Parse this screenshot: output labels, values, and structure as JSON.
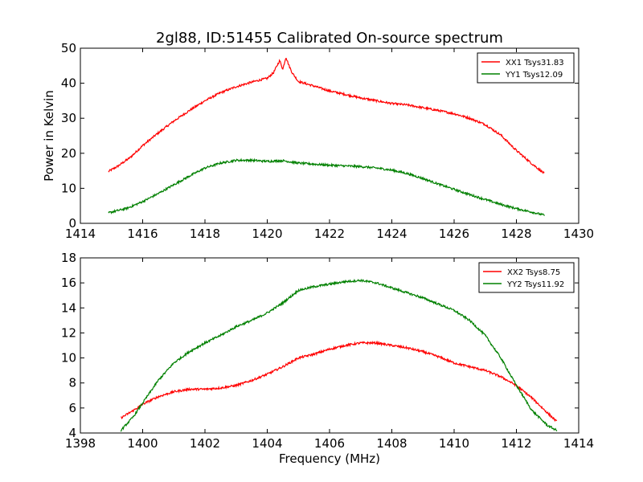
{
  "figure": {
    "title": "2gl88, ID:51455 Calibrated On-source spectrum"
  },
  "chart_data": [
    {
      "type": "line",
      "title": "2gl88, ID:51455 Calibrated On-source spectrum",
      "xlabel": "",
      "ylabel": "Power in Kelvin",
      "xlim": [
        1414,
        1430
      ],
      "ylim": [
        0,
        50
      ],
      "xticks": [
        1414,
        1416,
        1418,
        1420,
        1422,
        1424,
        1426,
        1428,
        1430
      ],
      "yticks": [
        0,
        10,
        20,
        30,
        40,
        50
      ],
      "legend_position": "top-right",
      "series": [
        {
          "name": "XX1 Tsys31.83",
          "color": "#ff0000",
          "x": [
            1414.9,
            1415.2,
            1415.6,
            1416.0,
            1416.5,
            1417.0,
            1417.5,
            1418.0,
            1418.5,
            1419.0,
            1419.5,
            1419.8,
            1420.0,
            1420.2,
            1420.4,
            1420.5,
            1420.6,
            1420.7,
            1420.8,
            1421.0,
            1421.5,
            1422.0,
            1422.5,
            1423.0,
            1423.5,
            1424.0,
            1424.5,
            1425.0,
            1425.5,
            1426.0,
            1426.5,
            1427.0,
            1427.5,
            1428.0,
            1428.5,
            1428.9
          ],
          "y": [
            14.8,
            16.3,
            18.8,
            22.2,
            25.8,
            29.2,
            32.2,
            35.0,
            37.3,
            39.0,
            40.3,
            41.0,
            41.4,
            43.0,
            46.5,
            44.0,
            47.5,
            45.0,
            43.0,
            40.5,
            39.2,
            37.8,
            36.8,
            35.8,
            35.0,
            34.2,
            33.8,
            33.0,
            32.2,
            31.3,
            30.0,
            28.2,
            25.2,
            20.8,
            17.0,
            14.2
          ]
        },
        {
          "name": "YY1 Tsys12.09",
          "color": "#008000",
          "x": [
            1414.9,
            1415.5,
            1416.0,
            1416.5,
            1417.0,
            1417.5,
            1418.0,
            1418.5,
            1419.0,
            1419.5,
            1420.0,
            1420.5,
            1421.0,
            1421.5,
            1422.0,
            1422.5,
            1423.0,
            1423.5,
            1424.0,
            1424.5,
            1425.0,
            1425.5,
            1426.0,
            1426.5,
            1427.0,
            1427.5,
            1428.0,
            1428.5,
            1428.9
          ],
          "y": [
            3.0,
            4.3,
            6.2,
            8.5,
            11.0,
            13.5,
            15.8,
            17.2,
            18.0,
            18.0,
            17.7,
            17.9,
            17.2,
            16.9,
            16.6,
            16.4,
            16.2,
            15.8,
            15.2,
            14.2,
            12.8,
            11.2,
            9.7,
            8.2,
            6.8,
            5.4,
            4.2,
            3.2,
            2.3
          ]
        }
      ]
    },
    {
      "type": "line",
      "title": "",
      "xlabel": "Frequency (MHz)",
      "ylabel": "",
      "xlim": [
        1398,
        1414
      ],
      "ylim": [
        4,
        18
      ],
      "xticks": [
        1398,
        1400,
        1402,
        1404,
        1406,
        1408,
        1410,
        1412,
        1414
      ],
      "yticks": [
        4,
        6,
        8,
        10,
        12,
        14,
        16,
        18
      ],
      "legend_position": "top-right",
      "series": [
        {
          "name": "XX2 Tsys8.75",
          "color": "#ff0000",
          "x": [
            1399.3,
            1399.7,
            1400.0,
            1400.5,
            1401.0,
            1401.5,
            1402.0,
            1402.5,
            1403.0,
            1403.5,
            1404.0,
            1404.5,
            1405.0,
            1405.5,
            1406.0,
            1406.5,
            1407.0,
            1407.5,
            1408.0,
            1408.5,
            1409.0,
            1409.5,
            1410.0,
            1410.5,
            1411.0,
            1411.5,
            1412.0,
            1412.5,
            1413.0,
            1413.3
          ],
          "y": [
            5.2,
            5.8,
            6.3,
            6.9,
            7.3,
            7.5,
            7.5,
            7.6,
            7.8,
            8.2,
            8.7,
            9.3,
            10.0,
            10.3,
            10.7,
            11.0,
            11.2,
            11.2,
            11.0,
            10.8,
            10.5,
            10.1,
            9.6,
            9.3,
            9.0,
            8.5,
            7.8,
            6.8,
            5.6,
            4.9
          ]
        },
        {
          "name": "YY2 Tsys11.92",
          "color": "#008000",
          "x": [
            1399.3,
            1399.7,
            1400.0,
            1400.5,
            1401.0,
            1401.5,
            1402.0,
            1402.5,
            1403.0,
            1403.5,
            1404.0,
            1404.5,
            1405.0,
            1405.5,
            1406.0,
            1406.5,
            1407.0,
            1407.5,
            1408.0,
            1408.5,
            1409.0,
            1409.5,
            1410.0,
            1410.5,
            1411.0,
            1411.5,
            1412.0,
            1412.5,
            1413.0,
            1413.3
          ],
          "y": [
            4.2,
            5.3,
            6.4,
            8.2,
            9.6,
            10.5,
            11.2,
            11.8,
            12.5,
            13.0,
            13.6,
            14.4,
            15.4,
            15.7,
            15.9,
            16.1,
            16.2,
            16.0,
            15.6,
            15.2,
            14.8,
            14.3,
            13.8,
            13.0,
            11.8,
            10.0,
            7.8,
            5.8,
            4.6,
            4.2
          ]
        }
      ]
    }
  ]
}
